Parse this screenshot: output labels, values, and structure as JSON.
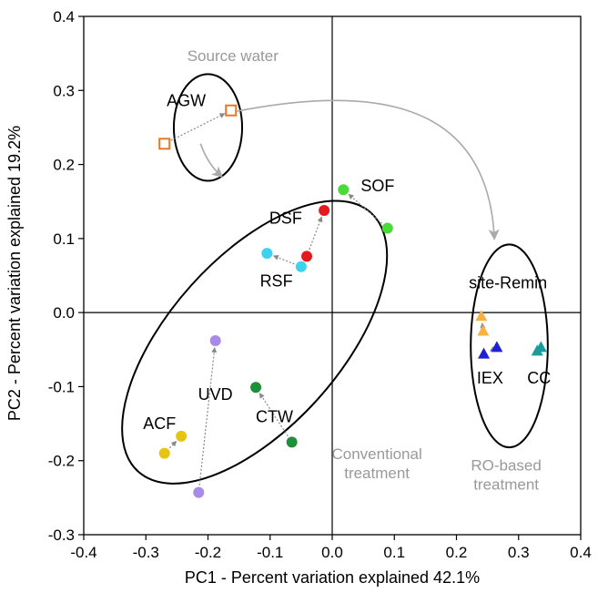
{
  "chart_data": {
    "type": "scatter",
    "xlabel": "PC1 - Percent variation explained 42.1%",
    "ylabel": "PC2 - Percent variation explained 19.2%",
    "xlim": [
      -0.4,
      0.4
    ],
    "ylim": [
      -0.3,
      0.4
    ],
    "xticks": [
      -0.4,
      -0.3,
      -0.2,
      -0.1,
      0.0,
      0.1,
      0.2,
      0.3,
      0.4
    ],
    "yticks": [
      -0.3,
      -0.2,
      -0.1,
      0.0,
      0.1,
      0.2,
      0.3,
      0.4
    ],
    "xtick_labels": [
      "-0.4",
      "-0.3",
      "-0.2",
      "-0.1",
      "0.0",
      "0.1",
      "0.2",
      "0.3",
      "0.4"
    ],
    "ytick_labels": [
      "-0.3",
      "-0.2",
      "-0.1",
      "0.0",
      "0.1",
      "0.2",
      "0.3",
      "0.4"
    ],
    "grid": false,
    "series": [
      {
        "name": "AGW",
        "marker": "square-open",
        "color": "#e87722",
        "points": [
          [
            -0.163,
            0.273
          ],
          [
            -0.27,
            0.228
          ]
        ]
      },
      {
        "name": "SOF",
        "marker": "circle",
        "color": "#4cd93a",
        "points": [
          [
            0.018,
            0.166
          ],
          [
            0.089,
            0.114
          ]
        ]
      },
      {
        "name": "DSF",
        "marker": "circle",
        "color": "#e41a1c",
        "points": [
          [
            -0.013,
            0.138
          ],
          [
            -0.041,
            0.076
          ]
        ]
      },
      {
        "name": "RSF",
        "marker": "circle",
        "color": "#3fd2ee",
        "points": [
          [
            -0.105,
            0.08
          ],
          [
            -0.05,
            0.062
          ]
        ]
      },
      {
        "name": "UVD",
        "marker": "circle",
        "color": "#a88be8",
        "points": [
          [
            -0.188,
            -0.038
          ],
          [
            -0.215,
            -0.243
          ]
        ]
      },
      {
        "name": "ACF",
        "marker": "circle",
        "color": "#e5c512",
        "points": [
          [
            -0.243,
            -0.167
          ],
          [
            -0.27,
            -0.19
          ]
        ]
      },
      {
        "name": "CTW",
        "marker": "circle",
        "color": "#1f8f3a",
        "points": [
          [
            -0.123,
            -0.101
          ],
          [
            -0.065,
            -0.175
          ]
        ]
      },
      {
        "name": "site-Remin",
        "marker": "triangle",
        "color": "#f5b240",
        "points": [
          [
            0.24,
            -0.005
          ],
          [
            0.243,
            -0.025
          ]
        ]
      },
      {
        "name": "IEX",
        "marker": "triangle",
        "color": "#1f1fd6",
        "points": [
          [
            0.244,
            -0.056
          ],
          [
            0.265,
            -0.047
          ]
        ]
      },
      {
        "name": "CC",
        "marker": "triangle",
        "color": "#1a9c9c",
        "points": [
          [
            0.33,
            -0.052
          ],
          [
            0.336,
            -0.047
          ]
        ]
      }
    ],
    "point_labels": [
      {
        "text": "AGW",
        "x": -0.235,
        "y": 0.279
      },
      {
        "text": "SOF",
        "x": 0.073,
        "y": 0.164
      },
      {
        "text": "DSF",
        "x": -0.075,
        "y": 0.12
      },
      {
        "text": "RSF",
        "x": -0.09,
        "y": 0.035
      },
      {
        "text": "UVD",
        "x": -0.188,
        "y": -0.118
      },
      {
        "text": "ACF",
        "x": -0.278,
        "y": -0.157
      },
      {
        "text": "CTW",
        "x": -0.093,
        "y": -0.148
      },
      {
        "text": "site-Remin",
        "x": 0.283,
        "y": 0.033
      },
      {
        "text": "IEX",
        "x": 0.254,
        "y": -0.096
      },
      {
        "text": "CC",
        "x": 0.333,
        "y": -0.096
      }
    ],
    "group_labels": [
      {
        "id": "source-water",
        "lines": [
          "Source water"
        ],
        "x": -0.16,
        "y": 0.34
      },
      {
        "id": "conventional-treatment",
        "lines": [
          "Conventional",
          "treatment"
        ],
        "x": 0.072,
        "y": -0.198
      },
      {
        "id": "ro-based-treatment",
        "lines": [
          "RO-based",
          "treatment"
        ],
        "x": 0.28,
        "y": -0.213
      }
    ],
    "enclosures": [
      {
        "id": "source-water-circle",
        "cx": -0.2,
        "cy": 0.25,
        "rx": 0.055,
        "ry": 0.072,
        "rotate": 0
      },
      {
        "id": "conventional-ellipse",
        "cx": -0.125,
        "cy": -0.04,
        "rx": 0.28,
        "ry": 0.115,
        "rotate": -48
      },
      {
        "id": "ro-based-ellipse",
        "cx": 0.285,
        "cy": -0.045,
        "rx": 0.062,
        "ry": 0.137,
        "rotate": 0
      }
    ],
    "colors": {
      "axis": "#000000",
      "annotation": "#999999",
      "arrow": "#aaaaaa"
    }
  }
}
